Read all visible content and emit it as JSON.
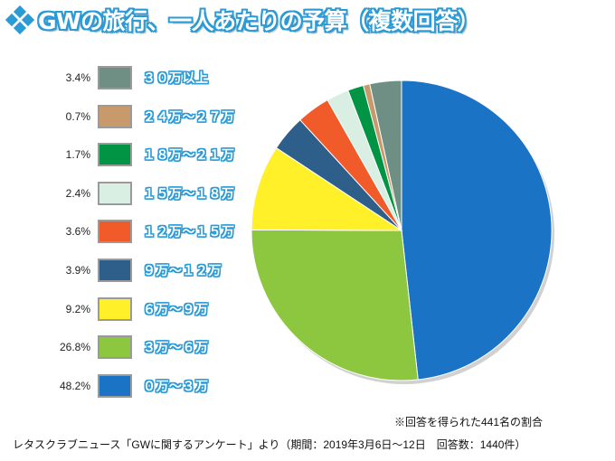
{
  "title": {
    "text": "GWの旅行、一人あたりの予算（複数回答）",
    "icon": "diamond-cluster-icon",
    "outline_color": "#2b9bd6"
  },
  "chart_data": {
    "type": "pie",
    "title": "GWの旅行、一人あたりの予算（複数回答）",
    "series": [
      {
        "label": "０万～３万",
        "percent_label": "48.2%",
        "value": 48.2,
        "color": "#1a73c4"
      },
      {
        "label": "３万～６万",
        "percent_label": "26.8%",
        "value": 26.8,
        "color": "#8dc63f"
      },
      {
        "label": "６万～９万",
        "percent_label": "9.2%",
        "value": 9.2,
        "color": "#fff02a"
      },
      {
        "label": "９万～１２万",
        "percent_label": "3.9%",
        "value": 3.9,
        "color": "#2e5f8a"
      },
      {
        "label": "１２万～１５万",
        "percent_label": "3.6%",
        "value": 3.6,
        "color": "#f15a29"
      },
      {
        "label": "１５万～１８万",
        "percent_label": "2.4%",
        "value": 2.4,
        "color": "#d9efe3"
      },
      {
        "label": "１８万～２１万",
        "percent_label": "1.7%",
        "value": 1.7,
        "color": "#009444"
      },
      {
        "label": "２４万～２７万",
        "percent_label": "0.7%",
        "value": 0.7,
        "color": "#c8996b"
      },
      {
        "label": "３０万以上",
        "percent_label": "3.4%",
        "value": 3.4,
        "color": "#6f8f84"
      }
    ],
    "start_angle_deg": 0,
    "direction": "clockwise",
    "legend_order": "reverse",
    "legend_position": "left"
  },
  "footnotes": {
    "note": "※回答を得られた441名の割合",
    "source": "レタスクラブニュース「GWに関するアンケート」より（期間：2019年3月6日～12日　回答数：1440件）"
  }
}
